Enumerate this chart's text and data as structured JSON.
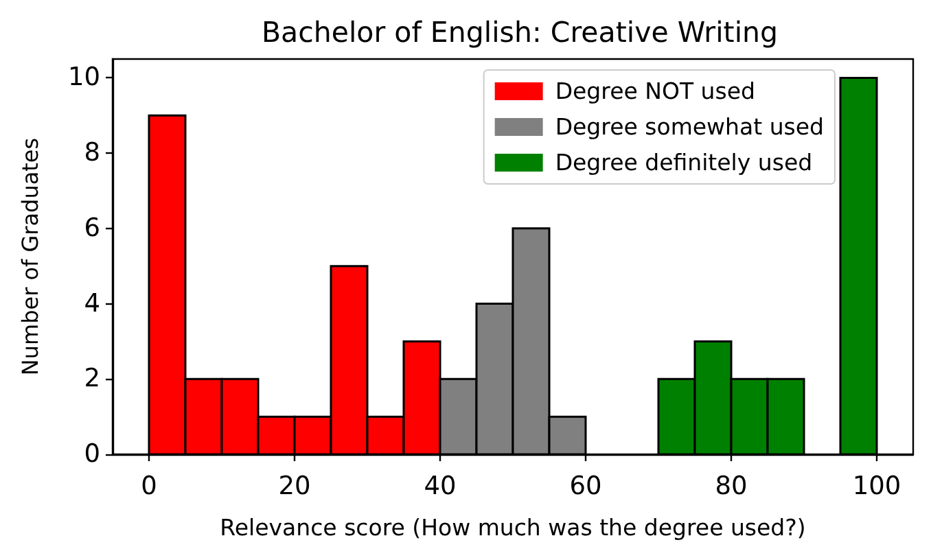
{
  "chart_data": {
    "type": "histogram",
    "title": "Bachelor of English: Creative Writing",
    "xlabel": "Relevance score (How much was the degree used?)",
    "ylabel": "Number of Graduates",
    "bins": [
      0,
      5,
      10,
      15,
      20,
      25,
      30,
      35,
      40,
      45,
      50,
      55,
      60,
      65,
      70,
      75,
      80,
      85,
      90,
      95,
      100
    ],
    "series": [
      {
        "name": "Degree NOT used",
        "color": "#ff0000",
        "values": [
          9,
          2,
          2,
          1,
          1,
          5,
          1,
          3,
          null,
          null,
          null,
          null,
          null,
          null,
          null,
          null,
          null,
          null,
          null,
          null
        ]
      },
      {
        "name": "Degree somewhat used",
        "color": "#808080",
        "values": [
          null,
          null,
          null,
          null,
          null,
          null,
          null,
          null,
          2,
          4,
          6,
          1,
          null,
          null,
          null,
          null,
          null,
          null,
          null,
          null
        ]
      },
      {
        "name": "Degree definitely used",
        "color": "#008000",
        "values": [
          null,
          null,
          null,
          null,
          null,
          null,
          null,
          null,
          null,
          null,
          null,
          null,
          null,
          null,
          2,
          3,
          2,
          2,
          null,
          10
        ]
      }
    ],
    "xlim": [
      -5,
      105
    ],
    "xticks": [
      0,
      20,
      40,
      60,
      80,
      100
    ],
    "ylim": [
      0,
      10.5
    ],
    "yticks": [
      0,
      2,
      4,
      6,
      8,
      10
    ],
    "grid": false,
    "legend": "top right"
  }
}
